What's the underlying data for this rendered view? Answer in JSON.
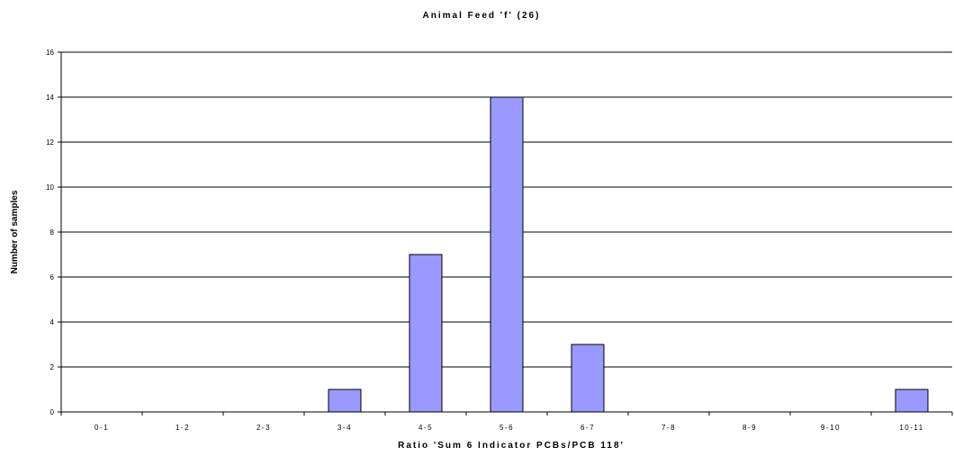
{
  "chart_data": {
    "type": "bar",
    "title": "Animal Feed 'f' (26)",
    "xlabel": "Ratio 'Sum 6 Indicator PCBs/PCB 118'",
    "ylabel": "Number of samples",
    "categories": [
      "0-1",
      "1-2",
      "2-3",
      "3-4",
      "4-5",
      "5-6",
      "6-7",
      "7-8",
      "8-9",
      "9-10",
      "10-11"
    ],
    "values": [
      0,
      0,
      0,
      1,
      7,
      14,
      3,
      0,
      0,
      0,
      1
    ],
    "ylim": [
      0,
      16
    ],
    "yticks": [
      0,
      2,
      4,
      6,
      8,
      10,
      12,
      14,
      16
    ],
    "grid": true,
    "legend": "none",
    "bar_color": "#9999ff",
    "bar_edge_color": "#000000"
  }
}
